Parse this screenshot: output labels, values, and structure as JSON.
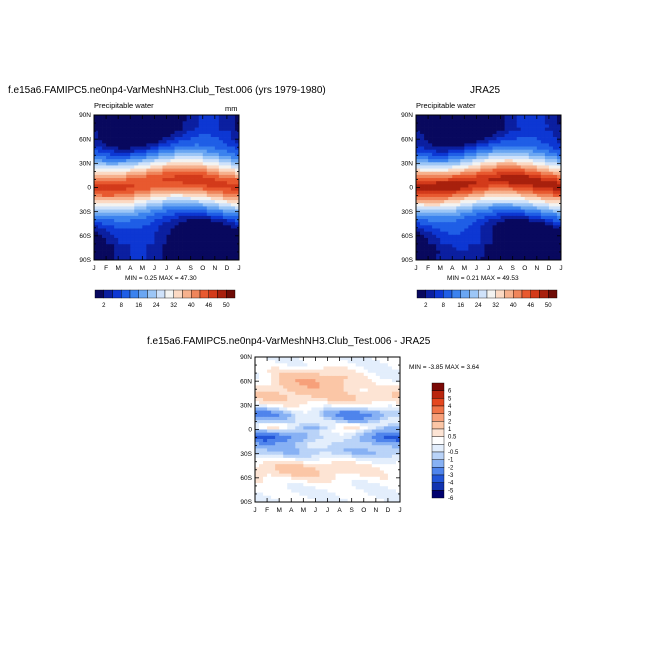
{
  "panels": {
    "left": {
      "title": "f.e15a6.FAMIPC5.ne0np4-VarMeshNH3.Club_Test.006 (yrs 1979-1980)",
      "subtitle": "Precipitable water",
      "units": "mm",
      "min_label": "MIN =",
      "min": "0.25",
      "max_label": "MAX =",
      "max": "47.30"
    },
    "right": {
      "title": "JRA25",
      "subtitle": "Precipitable water",
      "min_label": "MIN =",
      "min": "0.21",
      "max_label": "MAX =",
      "max": "49.53"
    },
    "diff": {
      "title": "f.e15a6.FAMIPC5.ne0np4-VarMeshNH3.Club_Test.006 - JRA25",
      "min_label": "MIN =",
      "min": "-3.85",
      "max_label": "MAX =",
      "max": "3.64"
    }
  },
  "chart_data": [
    {
      "type": "heatmap",
      "panel": "left",
      "x_ticks": [
        "J",
        "F",
        "M",
        "A",
        "M",
        "J",
        "J",
        "A",
        "S",
        "O",
        "N",
        "D",
        "J"
      ],
      "y_ticks": [
        "90N",
        "60N",
        "30N",
        "0",
        "30S",
        "60S",
        "90S"
      ],
      "ylim": [
        -90,
        90
      ],
      "colorbar_labels": [
        "2",
        "8",
        "16",
        "24",
        "32",
        "40",
        "46",
        "50"
      ],
      "field": "precipitable water vs latitude and month",
      "peak_lat_range": [
        5,
        12
      ],
      "peak_months": [
        "Jul",
        "Aug"
      ]
    },
    {
      "type": "heatmap",
      "panel": "right",
      "x_ticks": [
        "J",
        "F",
        "M",
        "A",
        "M",
        "J",
        "J",
        "A",
        "S",
        "O",
        "N",
        "D",
        "J"
      ],
      "y_ticks": [
        "90N",
        "60N",
        "30N",
        "0",
        "30S",
        "60S",
        "90S"
      ],
      "ylim": [
        -90,
        90
      ],
      "colorbar_labels": [
        "2",
        "8",
        "16",
        "24",
        "32",
        "40",
        "46",
        "50"
      ],
      "field": "precipitable water vs latitude and month"
    },
    {
      "type": "heatmap",
      "panel": "diff",
      "x_ticks": [
        "J",
        "F",
        "M",
        "A",
        "M",
        "J",
        "J",
        "A",
        "S",
        "O",
        "N",
        "D",
        "J"
      ],
      "y_ticks": [
        "90N",
        "60N",
        "30N",
        "0",
        "30S",
        "60S",
        "90S"
      ],
      "ylim": [
        -90,
        90
      ],
      "colorbar_labels": [
        "6",
        "5",
        "4",
        "3",
        "2",
        "1",
        "0.5",
        "0",
        "-0.5",
        "-1",
        "-2",
        "-3",
        "-4",
        "-5",
        "-6"
      ]
    }
  ],
  "colors": {
    "seq": [
      "#08085e",
      "#0b1fa0",
      "#0d37d3",
      "#1f5ee6",
      "#3b82ee",
      "#6aa6f2",
      "#9cc6f6",
      "#cfe2fa",
      "#f3f3f1",
      "#fbd9c3",
      "#f6b18d",
      "#ef855b",
      "#e8592f",
      "#d33a1a",
      "#a8200d",
      "#6e0c06"
    ],
    "div": [
      "#00006e",
      "#1133b0",
      "#2255d8",
      "#4f84ec",
      "#87b1f4",
      "#b9d3f8",
      "#e3eefc",
      "#ffffff",
      "#fde4d4",
      "#fbc6a6",
      "#f7a07a",
      "#f07448",
      "#e4471f",
      "#b9260e",
      "#7a0906"
    ]
  }
}
